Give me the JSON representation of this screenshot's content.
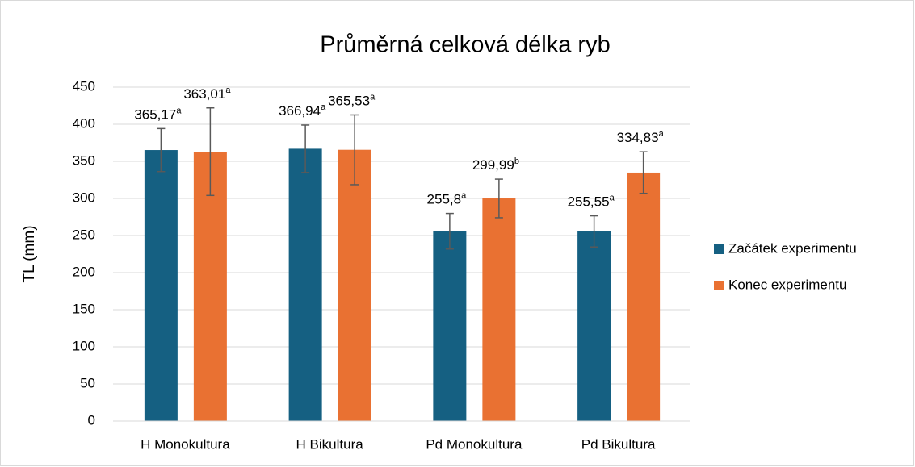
{
  "chart_data": {
    "type": "bar",
    "title": "Průměrná celková délka ryb",
    "y_label": "TL (mm)",
    "categories": [
      "H Monokultura",
      "H Bikultura",
      "Pd Monokultura",
      "Pd Bikultura"
    ],
    "series": [
      {
        "name": "Začátek experimentu",
        "color": "#156082",
        "values": [
          365.17,
          366.94,
          255.8,
          255.55
        ],
        "value_labels": [
          "365,17",
          "366,94",
          "255,8",
          "255,55"
        ],
        "letters": [
          "a",
          "a",
          "a",
          "a"
        ],
        "errors": [
          29,
          32,
          24,
          21
        ]
      },
      {
        "name": "Konec experimentu",
        "color": "#e97132",
        "values": [
          363.01,
          365.53,
          299.99,
          334.83
        ],
        "value_labels": [
          "363,01",
          "365,53",
          "299,99",
          "334,83"
        ],
        "letters": [
          "a",
          "a",
          "b",
          "a"
        ],
        "errors": [
          59,
          47,
          26,
          28
        ]
      }
    ],
    "ylim": [
      0,
      450
    ],
    "yticks": [
      0,
      50,
      100,
      150,
      200,
      250,
      300,
      350,
      400,
      450
    ],
    "grid": true,
    "legend": "right"
  }
}
